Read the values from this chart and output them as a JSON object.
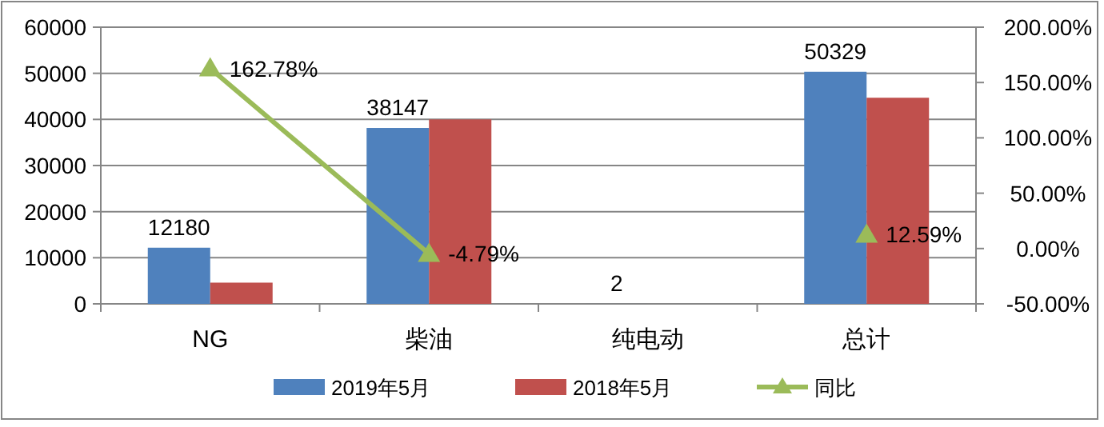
{
  "chart_data": {
    "type": "bar",
    "categories": [
      "NG",
      "柴油",
      "纯电动",
      "总计"
    ],
    "series": [
      {
        "name": "2019年5月",
        "color": "#4f81bd",
        "values": [
          12180,
          38147,
          2,
          50329
        ],
        "value_labels": [
          "12180",
          "38147",
          "2",
          "50329"
        ]
      },
      {
        "name": "2018年5月",
        "color": "#c0504d",
        "values": [
          4600,
          40000,
          null,
          44700
        ]
      },
      {
        "name": "同比",
        "type": "line",
        "axis": "y2",
        "color": "#9bbb59",
        "values": [
          162.78,
          -4.79,
          null,
          12.59
        ],
        "value_labels": [
          "162.78%",
          "-4.79%",
          null,
          "12.59%"
        ]
      }
    ],
    "ylim": [
      0,
      60000
    ],
    "yticks": [
      0,
      10000,
      20000,
      30000,
      40000,
      50000,
      60000
    ],
    "y2lim": [
      -50,
      200
    ],
    "y2ticks": [
      {
        "value": -50,
        "label": "-50.00%"
      },
      {
        "value": 0,
        "label": "0.00%"
      },
      {
        "value": 50,
        "label": "50.00%"
      },
      {
        "value": 100,
        "label": "100.00%"
      },
      {
        "value": 150,
        "label": "150.00%"
      },
      {
        "value": 200,
        "label": "200.00%"
      }
    ],
    "grid": "y",
    "legend": "bottom",
    "marker": "triangle"
  }
}
